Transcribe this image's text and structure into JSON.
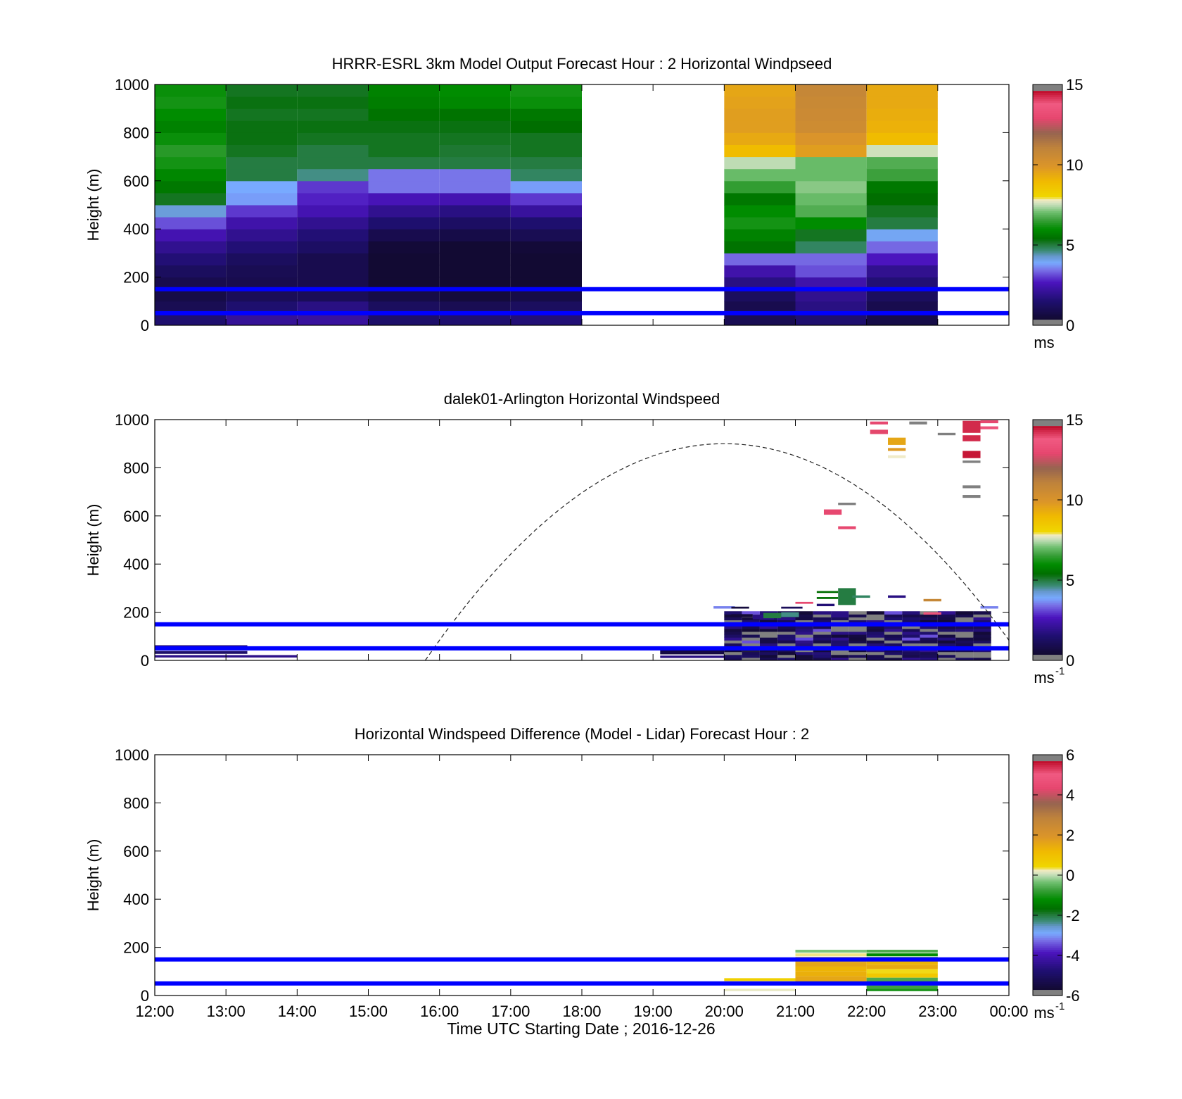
{
  "figure": {
    "xlabel": "Time UTC  Starting Date ; 2016-12-26",
    "x_ticks": [
      "12:00",
      "13:00",
      "14:00",
      "15:00",
      "16:00",
      "17:00",
      "18:00",
      "19:00",
      "20:00",
      "21:00",
      "22:00",
      "23:00",
      "00:00"
    ]
  },
  "chart_data": [
    {
      "type": "heatmap",
      "title": "HRRR-ESRL 3km Model Output   Forecast Hour : 2 Horizontal Windpseed",
      "ylabel": "Height (m)",
      "ylim": [
        0,
        1000
      ],
      "y_ticks": [
        "0",
        "200",
        "400",
        "600",
        "800",
        "1000"
      ],
      "xlim_hours": [
        12,
        24
      ],
      "colorbar": {
        "label": "ms",
        "range": [
          0,
          15
        ],
        "ticks": [
          "0",
          "5",
          "10",
          "15"
        ]
      },
      "reference_lines_m": [
        50,
        150
      ],
      "columns": [
        {
          "start_hour": 12,
          "values_bottom_to_top": [
            1.5,
            1.0,
            0.8,
            0.9,
            1.2,
            1.6,
            2.0,
            2.5,
            3.2,
            4.2,
            5.2,
            5.6,
            5.9,
            6.2,
            6.4,
            6.1,
            5.8,
            6.0,
            6.2,
            6.1
          ]
        },
        {
          "start_hour": 13,
          "values_bottom_to_top": [
            2.1,
            1.5,
            1.1,
            0.9,
            1.0,
            1.2,
            1.6,
            2.0,
            2.4,
            3.0,
            3.8,
            3.9,
            5.0,
            5.0,
            5.2,
            5.3,
            5.3,
            5.2,
            5.3,
            5.2
          ]
        },
        {
          "start_hour": 14,
          "values_bottom_to_top": [
            2.2,
            1.8,
            1.1,
            0.9,
            0.9,
            0.9,
            1.3,
            1.6,
            2.0,
            2.5,
            2.8,
            3.0,
            4.6,
            5.0,
            5.0,
            5.2,
            5.3,
            5.2,
            5.3,
            5.2
          ]
        },
        {
          "start_hour": 15,
          "values_bottom_to_top": [
            1.4,
            1.2,
            0.8,
            0.4,
            0.4,
            0.4,
            0.5,
            0.9,
            1.5,
            2.0,
            2.6,
            3.5,
            3.5,
            5.0,
            5.2,
            5.2,
            5.3,
            5.5,
            5.7,
            5.8
          ]
        },
        {
          "start_hour": 16,
          "values_bottom_to_top": [
            1.5,
            1.0,
            0.6,
            0.4,
            0.4,
            0.4,
            0.4,
            0.8,
            1.3,
            1.8,
            2.5,
            3.5,
            3.5,
            5.0,
            5.1,
            5.2,
            5.3,
            5.5,
            5.9,
            6.0
          ]
        },
        {
          "start_hour": 17,
          "values_bottom_to_top": [
            1.6,
            1.2,
            0.8,
            0.4,
            0.4,
            0.4,
            0.5,
            1.0,
            1.5,
            2.2,
            3.0,
            3.8,
            4.8,
            5.0,
            5.2,
            5.2,
            5.4,
            5.6,
            6.1,
            6.2
          ]
        },
        {
          "start_hour": 20,
          "values_bottom_to_top": [
            1.0,
            0.9,
            1.2,
            1.8,
            2.4,
            3.4,
            5.5,
            5.8,
            6.2,
            6.0,
            5.6,
            6.5,
            7.0,
            7.5,
            8.9,
            9.4,
            9.7,
            9.7,
            9.6,
            9.5
          ]
        },
        {
          "start_hour": 21,
          "values_bottom_to_top": [
            1.5,
            1.8,
            2.0,
            2.4,
            3.2,
            3.4,
            4.8,
            5.2,
            6.0,
            6.8,
            7.0,
            7.2,
            7.0,
            7.0,
            9.7,
            10.0,
            10.5,
            10.6,
            10.7,
            10.8
          ]
        },
        {
          "start_hour": 22,
          "values_bottom_to_top": [
            0.8,
            0.9,
            1.2,
            1.6,
            2.0,
            2.7,
            3.4,
            4.0,
            5.0,
            5.2,
            5.4,
            5.6,
            6.6,
            6.8,
            7.6,
            8.9,
            9.2,
            9.3,
            9.4,
            9.4
          ]
        }
      ]
    },
    {
      "type": "heatmap",
      "title": "dalek01-Arlington  Horizontal Windspeed",
      "ylabel": "Height (m)",
      "ylim": [
        0,
        1000
      ],
      "y_ticks": [
        "0",
        "200",
        "400",
        "600",
        "800",
        "1000"
      ],
      "xlim_hours": [
        12,
        24
      ],
      "colorbar": {
        "label": "ms",
        "label_superscript": "-1",
        "range": [
          0,
          15
        ],
        "ticks": [
          "0",
          "5",
          "10",
          "15"
        ]
      },
      "reference_lines_m": [
        50,
        150
      ],
      "dashed_arc": {
        "x_start_hour": 15.8,
        "x_peak_hour": 20.0,
        "peak_height_m": 900,
        "x_end_hour": 24.0,
        "end_height_m": 100
      },
      "cells": [
        {
          "x_hour": 12.0,
          "width_h": 1.3,
          "y_m": 45,
          "height_m": 18,
          "value": 1.7
        },
        {
          "x_hour": 12.0,
          "width_h": 1.3,
          "y_m": 27,
          "height_m": 12,
          "value": 1.4
        },
        {
          "x_hour": 12.0,
          "width_h": 2.0,
          "y_m": 12,
          "height_m": 10,
          "value": 1.9
        },
        {
          "x_hour": 19.1,
          "width_h": 0.9,
          "y_m": 25,
          "height_m": 18,
          "value": 0.7
        },
        {
          "x_hour": 19.1,
          "width_h": 0.9,
          "y_m": 10,
          "height_m": 10,
          "value": 1.8
        },
        {
          "x_hour": 19.85,
          "width_h": 0.3,
          "y_m": 215,
          "height_m": 10,
          "value": 3.6
        },
        {
          "x_hour": 20.1,
          "width_h": 0.25,
          "y_m": 215,
          "height_m": 8,
          "value": 0.6
        },
        {
          "x_hour": 20.1,
          "width_h": 0.3,
          "y_m": 180,
          "height_m": 12,
          "value": 0.5
        },
        {
          "x_hour": 20.4,
          "width_h": 0.3,
          "y_m": 170,
          "height_m": 20,
          "value": 1.8
        },
        {
          "x_hour": 20.55,
          "width_h": 0.25,
          "y_m": 175,
          "height_m": 22,
          "value": 5.0
        },
        {
          "x_hour": 20.8,
          "width_h": 0.25,
          "y_m": 180,
          "height_m": 20,
          "value": 4.6
        },
        {
          "x_hour": 20.8,
          "width_h": 0.3,
          "y_m": 215,
          "height_m": 8,
          "value": 1.1
        },
        {
          "x_hour": 21.0,
          "width_h": 0.25,
          "y_m": 235,
          "height_m": 8,
          "value": 13.0
        },
        {
          "x_hour": 21.3,
          "width_h": 0.3,
          "y_m": 280,
          "height_m": 8,
          "value": 5.4
        },
        {
          "x_hour": 21.3,
          "width_h": 0.3,
          "y_m": 255,
          "height_m": 8,
          "value": 5.4
        },
        {
          "x_hour": 21.6,
          "width_h": 0.25,
          "y_m": 230,
          "height_m": 70,
          "value": 5.0
        },
        {
          "x_hour": 21.8,
          "width_h": 0.25,
          "y_m": 260,
          "height_m": 10,
          "value": 4.8
        },
        {
          "x_hour": 21.3,
          "width_h": 0.25,
          "y_m": 225,
          "height_m": 10,
          "value": 1.6
        },
        {
          "x_hour": 22.3,
          "width_h": 0.25,
          "y_m": 260,
          "height_m": 10,
          "value": 1.8
        },
        {
          "x_hour": 22.8,
          "width_h": 0.25,
          "y_m": 245,
          "height_m": 10,
          "value": 10.8
        },
        {
          "x_hour": 22.8,
          "width_h": 0.25,
          "y_m": 190,
          "height_m": 10,
          "value": 13.5
        },
        {
          "x_hour": 23.6,
          "width_h": 0.25,
          "y_m": 215,
          "height_m": 10,
          "value": 3.6
        },
        {
          "x_hour": 21.4,
          "width_h": 0.25,
          "y_m": 605,
          "height_m": 22,
          "value": 13.0
        },
        {
          "x_hour": 21.6,
          "width_h": 0.25,
          "y_m": 645,
          "height_m": 10,
          "value": 15.0
        },
        {
          "x_hour": 21.6,
          "width_h": 0.25,
          "y_m": 545,
          "height_m": 12,
          "value": 13.0
        },
        {
          "x_hour": 22.05,
          "width_h": 0.25,
          "y_m": 980,
          "height_m": 12,
          "value": 13.0
        },
        {
          "x_hour": 22.05,
          "width_h": 0.25,
          "y_m": 940,
          "height_m": 18,
          "value": 14.0
        },
        {
          "x_hour": 22.3,
          "width_h": 0.25,
          "y_m": 895,
          "height_m": 30,
          "value": 9.5
        },
        {
          "x_hour": 22.3,
          "width_h": 0.25,
          "y_m": 870,
          "height_m": 12,
          "value": 9.8
        },
        {
          "x_hour": 22.3,
          "width_h": 0.25,
          "y_m": 840,
          "height_m": 12,
          "value": 7.8
        },
        {
          "x_hour": 22.6,
          "width_h": 0.25,
          "y_m": 980,
          "height_m": 12,
          "value": 15.0
        },
        {
          "x_hour": 23.0,
          "width_h": 0.25,
          "y_m": 935,
          "height_m": 10,
          "value": 15.0
        },
        {
          "x_hour": 23.35,
          "width_h": 0.25,
          "y_m": 945,
          "height_m": 50,
          "value": 14.3
        },
        {
          "x_hour": 23.35,
          "width_h": 0.25,
          "y_m": 910,
          "height_m": 25,
          "value": 14.3
        },
        {
          "x_hour": 23.35,
          "width_h": 0.25,
          "y_m": 840,
          "height_m": 30,
          "value": 14.5
        },
        {
          "x_hour": 23.35,
          "width_h": 0.25,
          "y_m": 820,
          "height_m": 10,
          "value": 15.0
        },
        {
          "x_hour": 23.35,
          "width_h": 0.25,
          "y_m": 715,
          "height_m": 12,
          "value": 15.0
        },
        {
          "x_hour": 23.35,
          "width_h": 0.25,
          "y_m": 675,
          "height_m": 12,
          "value": 15.0
        },
        {
          "x_hour": 23.6,
          "width_h": 0.25,
          "y_m": 985,
          "height_m": 12,
          "value": 13.0
        },
        {
          "x_hour": 23.6,
          "width_h": 0.25,
          "y_m": 960,
          "height_m": 12,
          "value": 13.5
        }
      ],
      "dense_block": {
        "x_start_hour": 20.0,
        "x_end_hour": 23.75,
        "y_start_m": 0,
        "y_end_m": 200,
        "value_range": [
          0,
          4
        ],
        "note_dark_dominant": true
      }
    },
    {
      "type": "heatmap",
      "title": "Horizontal Windspeed Difference (Model - Lidar) Forecast Hour : 2",
      "ylabel": "Height (m)",
      "ylim": [
        0,
        1000
      ],
      "y_ticks": [
        "0",
        "200",
        "400",
        "600",
        "800",
        "1000"
      ],
      "xlim_hours": [
        12,
        24
      ],
      "colorbar": {
        "label": "ms",
        "label_superscript": "-1",
        "range": [
          -6,
          6
        ],
        "ticks": [
          "-6",
          "-4",
          "-2",
          "0",
          "2",
          "4",
          "6"
        ]
      },
      "reference_lines_m": [
        50,
        150
      ],
      "cells": [
        {
          "x_hour": 20.0,
          "width_h": 1.0,
          "y_m": 60,
          "height_m": 12,
          "value": 0.6
        },
        {
          "x_hour": 20.0,
          "width_h": 1.0,
          "y_m": 45,
          "height_m": 12,
          "value": 0.4
        },
        {
          "x_hour": 20.0,
          "width_h": 1.0,
          "y_m": 18,
          "height_m": 10,
          "value": 0.2
        },
        {
          "x_hour": 21.0,
          "width_h": 1.0,
          "y_m": 178,
          "height_m": 12,
          "value": -0.3
        },
        {
          "x_hour": 21.0,
          "width_h": 1.0,
          "y_m": 163,
          "height_m": 12,
          "value": 0.3
        },
        {
          "x_hour": 21.0,
          "width_h": 1.0,
          "y_m": 140,
          "height_m": 20,
          "value": 1.4
        },
        {
          "x_hour": 21.0,
          "width_h": 1.0,
          "y_m": 120,
          "height_m": 20,
          "value": 1.6
        },
        {
          "x_hour": 21.0,
          "width_h": 1.0,
          "y_m": 100,
          "height_m": 20,
          "value": 1.3
        },
        {
          "x_hour": 21.0,
          "width_h": 1.0,
          "y_m": 80,
          "height_m": 20,
          "value": 1.4
        },
        {
          "x_hour": 21.0,
          "width_h": 1.0,
          "y_m": 60,
          "height_m": 20,
          "value": 1.6
        },
        {
          "x_hour": 21.0,
          "width_h": 1.0,
          "y_m": 45,
          "height_m": 15,
          "value": 1.2
        },
        {
          "x_hour": 22.0,
          "width_h": 1.0,
          "y_m": 178,
          "height_m": 12,
          "value": -0.6
        },
        {
          "x_hour": 22.0,
          "width_h": 1.0,
          "y_m": 163,
          "height_m": 12,
          "value": -1.2
        },
        {
          "x_hour": 22.0,
          "width_h": 1.0,
          "y_m": 148,
          "height_m": 12,
          "value": -0.8
        },
        {
          "x_hour": 22.0,
          "width_h": 1.0,
          "y_m": 128,
          "height_m": 20,
          "value": 1.3
        },
        {
          "x_hour": 22.0,
          "width_h": 1.0,
          "y_m": 110,
          "height_m": 18,
          "value": 1.5
        },
        {
          "x_hour": 22.0,
          "width_h": 1.0,
          "y_m": 92,
          "height_m": 18,
          "value": 0.4
        },
        {
          "x_hour": 22.0,
          "width_h": 1.0,
          "y_m": 74,
          "height_m": 18,
          "value": 0.8
        },
        {
          "x_hour": 22.0,
          "width_h": 1.0,
          "y_m": 58,
          "height_m": 16,
          "value": -0.6
        },
        {
          "x_hour": 22.0,
          "width_h": 1.0,
          "y_m": 28,
          "height_m": 14,
          "value": -0.7
        },
        {
          "x_hour": 22.0,
          "width_h": 1.0,
          "y_m": 18,
          "height_m": 10,
          "value": -1.0
        }
      ]
    }
  ]
}
